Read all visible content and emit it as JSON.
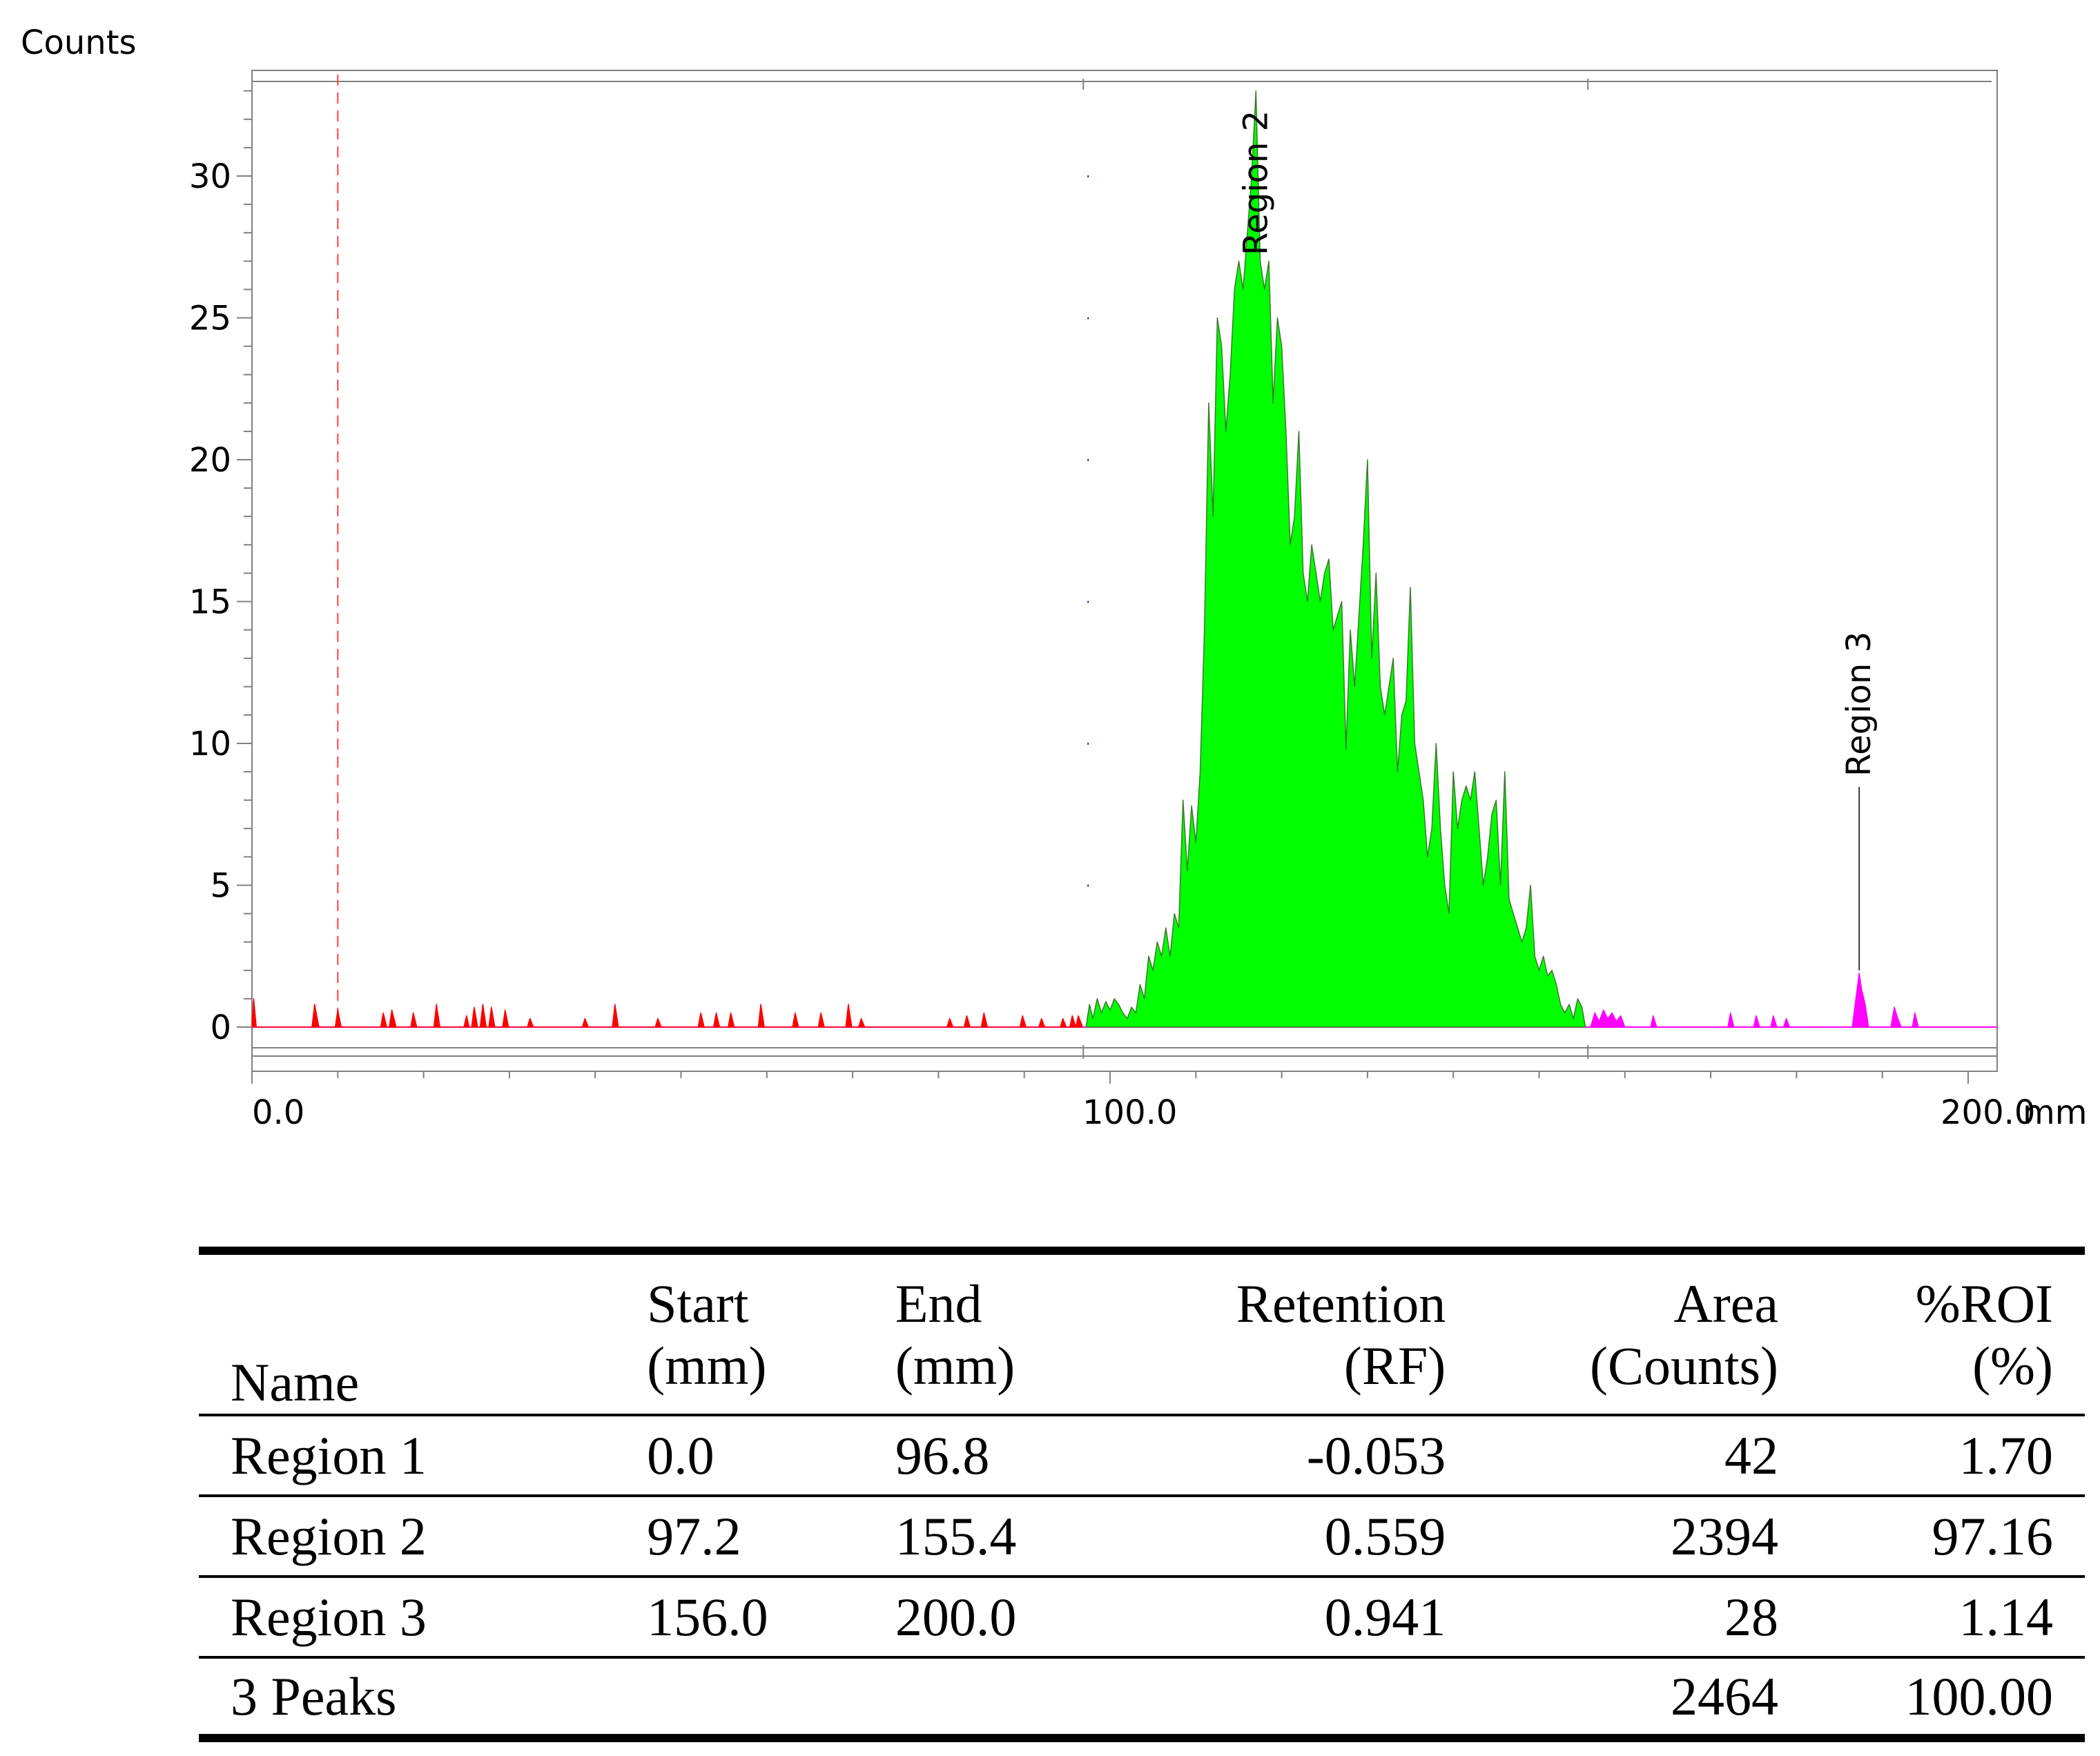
{
  "chart_data": {
    "type": "area",
    "ylabel": "Counts",
    "x_unit": "mm",
    "xlim": [
      0,
      200
    ],
    "ylim": [
      0,
      33
    ],
    "x_ticks": [
      "0.0",
      "100.0",
      "200.0"
    ],
    "y_ticks": [
      "0",
      "5",
      "10",
      "15",
      "20",
      "25",
      "30"
    ],
    "grid": false,
    "origin_line_x": 10,
    "regions": [
      {
        "name": "Region 1",
        "color": "#ff0000",
        "start": 0.0,
        "end": 96.8,
        "show_label": false,
        "points": [
          [
            0,
            0
          ],
          [
            0.2,
            1
          ],
          [
            0.5,
            0
          ],
          [
            7,
            0
          ],
          [
            7.3,
            0.8
          ],
          [
            7.8,
            0
          ],
          [
            9.7,
            0
          ],
          [
            10,
            0.6
          ],
          [
            10.4,
            0
          ],
          [
            15,
            0
          ],
          [
            15.3,
            0.5
          ],
          [
            15.7,
            0
          ],
          [
            16,
            0
          ],
          [
            16.3,
            0.6
          ],
          [
            16.8,
            0
          ],
          [
            18.5,
            0
          ],
          [
            18.8,
            0.5
          ],
          [
            19.2,
            0
          ],
          [
            21.2,
            0
          ],
          [
            21.5,
            0.8
          ],
          [
            21.9,
            0
          ],
          [
            24.7,
            0
          ],
          [
            25,
            0.4
          ],
          [
            25.3,
            0
          ],
          [
            25.6,
            0
          ],
          [
            25.9,
            0.7
          ],
          [
            26.3,
            0
          ],
          [
            26.6,
            0
          ],
          [
            26.9,
            0.8
          ],
          [
            27.3,
            0
          ],
          [
            27.6,
            0
          ],
          [
            27.9,
            0.7
          ],
          [
            28.3,
            0
          ],
          [
            29.2,
            0
          ],
          [
            29.5,
            0.6
          ],
          [
            29.9,
            0
          ],
          [
            32.1,
            0
          ],
          [
            32.4,
            0.3
          ],
          [
            32.8,
            0
          ],
          [
            38.5,
            0
          ],
          [
            38.8,
            0.3
          ],
          [
            39.2,
            0
          ],
          [
            42,
            0
          ],
          [
            42.3,
            0.8
          ],
          [
            42.7,
            0
          ],
          [
            47,
            0
          ],
          [
            47.3,
            0.3
          ],
          [
            47.7,
            0
          ],
          [
            52,
            0
          ],
          [
            52.3,
            0.5
          ],
          [
            52.7,
            0
          ],
          [
            53.8,
            0
          ],
          [
            54.1,
            0.5
          ],
          [
            54.5,
            0
          ],
          [
            55.5,
            0
          ],
          [
            55.8,
            0.5
          ],
          [
            56.2,
            0
          ],
          [
            59,
            0
          ],
          [
            59.3,
            0.8
          ],
          [
            59.7,
            0
          ],
          [
            63,
            0
          ],
          [
            63.3,
            0.5
          ],
          [
            63.7,
            0
          ],
          [
            66,
            0
          ],
          [
            66.3,
            0.5
          ],
          [
            66.7,
            0
          ],
          [
            69.2,
            0
          ],
          [
            69.5,
            0.8
          ],
          [
            69.9,
            0
          ],
          [
            70.7,
            0
          ],
          [
            71,
            0.3
          ],
          [
            71.4,
            0
          ],
          [
            81,
            0
          ],
          [
            81.3,
            0.3
          ],
          [
            81.7,
            0
          ],
          [
            83,
            0
          ],
          [
            83.3,
            0.4
          ],
          [
            83.7,
            0
          ],
          [
            85,
            0
          ],
          [
            85.3,
            0.5
          ],
          [
            85.7,
            0
          ],
          [
            89.5,
            0
          ],
          [
            89.8,
            0.4
          ],
          [
            90.2,
            0
          ],
          [
            91.7,
            0
          ],
          [
            92,
            0.3
          ],
          [
            92.4,
            0
          ],
          [
            94.2,
            0
          ],
          [
            94.5,
            0.3
          ],
          [
            94.9,
            0
          ],
          [
            95.3,
            0
          ],
          [
            95.6,
            0.4
          ],
          [
            96,
            0
          ],
          [
            96.3,
            0.4
          ],
          [
            96.8,
            0
          ]
        ]
      },
      {
        "name": "Region 2",
        "color": "#00ff00",
        "start": 97.2,
        "end": 155.4,
        "show_label": true,
        "points": [
          [
            97.2,
            0
          ],
          [
            97.6,
            0.8
          ],
          [
            98,
            0.3
          ],
          [
            98.5,
            1
          ],
          [
            99,
            0.5
          ],
          [
            99.5,
            0.9
          ],
          [
            100,
            0.6
          ],
          [
            100.5,
            1
          ],
          [
            101,
            0.8
          ],
          [
            101.5,
            0.5
          ],
          [
            102,
            0.3
          ],
          [
            102.5,
            0.7
          ],
          [
            103,
            0.5
          ],
          [
            103.5,
            1.5
          ],
          [
            104,
            1
          ],
          [
            104.5,
            2.5
          ],
          [
            105,
            2
          ],
          [
            105.5,
            3
          ],
          [
            106,
            2.5
          ],
          [
            106.5,
            3.5
          ],
          [
            107,
            2.5
          ],
          [
            107.5,
            4
          ],
          [
            108,
            3.5
          ],
          [
            108.5,
            8
          ],
          [
            109,
            5.5
          ],
          [
            109.5,
            7.8
          ],
          [
            110,
            6.5
          ],
          [
            110.5,
            9
          ],
          [
            111,
            14
          ],
          [
            111.5,
            22
          ],
          [
            112,
            18
          ],
          [
            112.5,
            25
          ],
          [
            113,
            24
          ],
          [
            113.5,
            21
          ],
          [
            114,
            23
          ],
          [
            114.5,
            26
          ],
          [
            115,
            27
          ],
          [
            115.5,
            26
          ],
          [
            116,
            28
          ],
          [
            116.5,
            30
          ],
          [
            117,
            33
          ],
          [
            117.5,
            27
          ],
          [
            118,
            26
          ],
          [
            118.5,
            27
          ],
          [
            119,
            22
          ],
          [
            119.5,
            25
          ],
          [
            120,
            24
          ],
          [
            120.5,
            21
          ],
          [
            121,
            17
          ],
          [
            121.5,
            18
          ],
          [
            122,
            21
          ],
          [
            122.5,
            16
          ],
          [
            123,
            15
          ],
          [
            123.5,
            17
          ],
          [
            124,
            16
          ],
          [
            124.5,
            15
          ],
          [
            125,
            16
          ],
          [
            125.5,
            16.5
          ],
          [
            126,
            14
          ],
          [
            126.5,
            14.5
          ],
          [
            127,
            15
          ],
          [
            127.5,
            9.8
          ],
          [
            128,
            14
          ],
          [
            128.5,
            12
          ],
          [
            129,
            14.5
          ],
          [
            129.5,
            17
          ],
          [
            130,
            20
          ],
          [
            130.5,
            13
          ],
          [
            131,
            16
          ],
          [
            131.5,
            12
          ],
          [
            132,
            11
          ],
          [
            132.5,
            12
          ],
          [
            133,
            13
          ],
          [
            133.5,
            9
          ],
          [
            134,
            11
          ],
          [
            134.5,
            11.5
          ],
          [
            135,
            15.5
          ],
          [
            135.5,
            10
          ],
          [
            136,
            9
          ],
          [
            136.5,
            8
          ],
          [
            137,
            6
          ],
          [
            137.5,
            7
          ],
          [
            138,
            10
          ],
          [
            138.5,
            7
          ],
          [
            139,
            5
          ],
          [
            139.5,
            4
          ],
          [
            140,
            9
          ],
          [
            140.5,
            7
          ],
          [
            141,
            8
          ],
          [
            141.5,
            8.5
          ],
          [
            142,
            8
          ],
          [
            142.5,
            9
          ],
          [
            143,
            7
          ],
          [
            143.5,
            5
          ],
          [
            144,
            6
          ],
          [
            144.5,
            7.5
          ],
          [
            145,
            8
          ],
          [
            145.5,
            5
          ],
          [
            146,
            9
          ],
          [
            146.5,
            4.5
          ],
          [
            147,
            4
          ],
          [
            147.5,
            3.5
          ],
          [
            148,
            3
          ],
          [
            148.5,
            3.5
          ],
          [
            149,
            5
          ],
          [
            149.5,
            2.5
          ],
          [
            150,
            2
          ],
          [
            150.5,
            2.5
          ],
          [
            151,
            1.8
          ],
          [
            151.5,
            2
          ],
          [
            152,
            1.5
          ],
          [
            152.5,
            0.8
          ],
          [
            153,
            0.5
          ],
          [
            153.5,
            0.8
          ],
          [
            154,
            0.3
          ],
          [
            154.5,
            1
          ],
          [
            155,
            0.7
          ],
          [
            155.4,
            0
          ]
        ]
      },
      {
        "name": "Region 3",
        "color": "#ff00ff",
        "start": 156.0,
        "end": 200.0,
        "show_label": true,
        "points": [
          [
            156,
            0
          ],
          [
            156.5,
            0.5
          ],
          [
            157,
            0.2
          ],
          [
            157.5,
            0.6
          ],
          [
            158,
            0.3
          ],
          [
            158.5,
            0.5
          ],
          [
            159,
            0.2
          ],
          [
            159.5,
            0.4
          ],
          [
            160,
            0
          ],
          [
            163,
            0
          ],
          [
            163.3,
            0.4
          ],
          [
            163.7,
            0
          ],
          [
            172,
            0
          ],
          [
            172.3,
            0.5
          ],
          [
            172.7,
            0
          ],
          [
            175,
            0
          ],
          [
            175.3,
            0.4
          ],
          [
            175.7,
            0
          ],
          [
            177,
            0
          ],
          [
            177.3,
            0.4
          ],
          [
            177.7,
            0
          ],
          [
            178.5,
            0
          ],
          [
            178.8,
            0.3
          ],
          [
            179.2,
            0
          ],
          [
            186.5,
            0
          ],
          [
            187,
            1.2
          ],
          [
            187.3,
            1.9
          ],
          [
            187.6,
            1.3
          ],
          [
            188,
            0.8
          ],
          [
            188.4,
            0
          ],
          [
            191,
            0
          ],
          [
            191.4,
            0.7
          ],
          [
            191.8,
            0.3
          ],
          [
            192.2,
            0
          ],
          [
            193.5,
            0
          ],
          [
            193.8,
            0.5
          ],
          [
            194.2,
            0
          ]
        ]
      }
    ]
  },
  "table": {
    "headers": [
      {
        "line1": "Name",
        "line2": ""
      },
      {
        "line1": "Start",
        "line2": "(mm)"
      },
      {
        "line1": "End",
        "line2": "(mm)"
      },
      {
        "line1": "Retention",
        "line2": "(RF)"
      },
      {
        "line1": "Area",
        "line2": "(Counts)"
      },
      {
        "line1": "%ROI",
        "line2": "(%)"
      }
    ],
    "rows": [
      {
        "name": "Region 1",
        "start": "0.0",
        "end": "96.8",
        "retention": "-0.053",
        "area": "42",
        "roi": "1.70"
      },
      {
        "name": "Region 2",
        "start": "97.2",
        "end": "155.4",
        "retention": "0.559",
        "area": "2394",
        "roi": "97.16"
      },
      {
        "name": "Region 3",
        "start": "156.0",
        "end": "200.0",
        "retention": "0.941",
        "area": "28",
        "roi": "1.14"
      },
      {
        "name": "3 Peaks",
        "start": "",
        "end": "",
        "retention": "",
        "area": "2464",
        "roi": "100.00"
      }
    ]
  }
}
